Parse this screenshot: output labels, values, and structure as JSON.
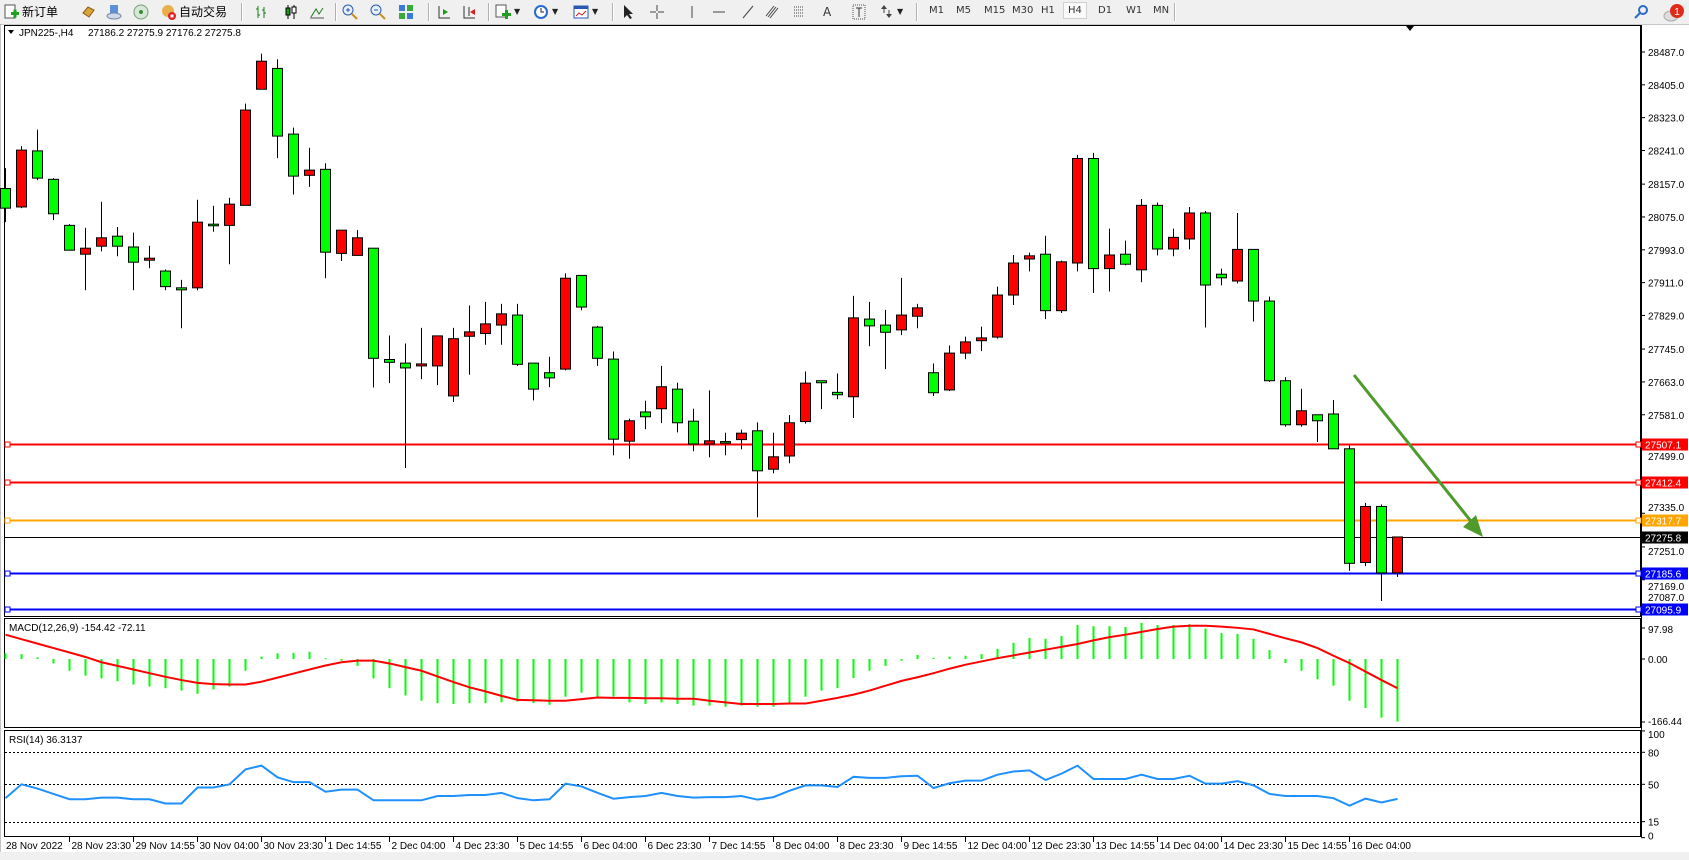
{
  "toolbar": {
    "new_order": "新订单",
    "auto_trade": "自动交易",
    "timeframes": [
      "M1",
      "M5",
      "M15",
      "M30",
      "H1",
      "H4",
      "D1",
      "W1",
      "MN"
    ],
    "active_timeframe": "H4",
    "notification_count": "1",
    "text_tool": "A"
  },
  "chart": {
    "symbol": "JPN225-,H4",
    "ohlc": "27186.2 27275.9 27176.2 27275.8",
    "bull_color": "#ff0000",
    "bear_color": "#00ff00",
    "price_ticks": [
      "28487.0",
      "28405.0",
      "28323.0",
      "28241.0",
      "28157.0",
      "28075.0",
      "27993.0",
      "27911.0",
      "27829.0",
      "27745.0",
      "27663.0",
      "27581.0",
      "27499.0",
      "27335.0",
      "27251.0",
      "27169.0",
      "27087.0"
    ],
    "bid": {
      "price": 27275.8,
      "label": "27275.8",
      "color": "#000000"
    },
    "hlines": [
      {
        "price": 27507.1,
        "label": "27507.1",
        "color": "#ff0000"
      },
      {
        "price": 27412.4,
        "label": "27412.4",
        "color": "#ff0000"
      },
      {
        "price": 27317.7,
        "label": "27317.7",
        "color": "#ffa500"
      },
      {
        "price": 27185.6,
        "label": "27185.6",
        "color": "#0000ff"
      },
      {
        "price": 27095.9,
        "label": "27095.9",
        "color": "#0000ff"
      }
    ],
    "arrow_color": "#4f9a2c",
    "candles": [
      [
        28146,
        28197,
        28062,
        28097
      ],
      [
        28100,
        28252,
        28097,
        28242
      ],
      [
        28240,
        28293,
        28167,
        28172
      ],
      [
        28169,
        28172,
        28067,
        28083
      ],
      [
        28054,
        28057,
        27992,
        27992
      ],
      [
        27982,
        28048,
        27892,
        27997
      ],
      [
        28002,
        28113,
        27989,
        28023
      ],
      [
        28027,
        28050,
        27977,
        28002
      ],
      [
        28000,
        28036,
        27892,
        27962
      ],
      [
        27967,
        28003,
        27947,
        27972
      ],
      [
        27940,
        27944,
        27892,
        27901
      ],
      [
        27898,
        27918,
        27797,
        27893
      ],
      [
        27898,
        28118,
        27892,
        28062
      ],
      [
        28057,
        28103,
        28038,
        28053
      ],
      [
        28054,
        28123,
        27957,
        28107
      ],
      [
        28104,
        28358,
        28104,
        28342
      ],
      [
        28394,
        28483,
        28394,
        28464
      ],
      [
        28446,
        28469,
        28222,
        28277
      ],
      [
        28282,
        28298,
        28131,
        28177
      ],
      [
        28179,
        28248,
        28150,
        28192
      ],
      [
        28194,
        28209,
        27922,
        27987
      ],
      [
        27984,
        28042,
        27965,
        28042
      ],
      [
        27979,
        28042,
        27979,
        28023
      ],
      [
        27997,
        27997,
        27649,
        27722
      ],
      [
        27719,
        27779,
        27660,
        27712
      ],
      [
        27710,
        27759,
        27448,
        27698
      ],
      [
        27703,
        27798,
        27670,
        27708
      ],
      [
        27703,
        27778,
        27655,
        27778
      ],
      [
        27628,
        27798,
        27613,
        27771
      ],
      [
        27777,
        27854,
        27681,
        27788
      ],
      [
        27784,
        27863,
        27756,
        27808
      ],
      [
        27805,
        27858,
        27756,
        27833
      ],
      [
        27830,
        27858,
        27703,
        27707
      ],
      [
        27710,
        27710,
        27617,
        27645
      ],
      [
        27686,
        27726,
        27650,
        27673
      ],
      [
        27695,
        27934,
        27692,
        27922
      ],
      [
        27929,
        27929,
        27842,
        27850
      ],
      [
        27800,
        27803,
        27703,
        27722
      ],
      [
        27720,
        27739,
        27480,
        27520
      ],
      [
        27515,
        27571,
        27471,
        27566
      ],
      [
        27588,
        27616,
        27545,
        27576
      ],
      [
        27596,
        27703,
        27560,
        27651
      ],
      [
        27645,
        27661,
        27537,
        27561
      ],
      [
        27565,
        27596,
        27490,
        27508
      ],
      [
        27508,
        27642,
        27475,
        27516
      ],
      [
        27514,
        27536,
        27480,
        27513
      ],
      [
        27519,
        27544,
        27495,
        27535
      ],
      [
        27541,
        27562,
        27325,
        27441
      ],
      [
        27445,
        27536,
        27435,
        27476
      ],
      [
        27478,
        27580,
        27460,
        27561
      ],
      [
        27564,
        27689,
        27559,
        27660
      ],
      [
        27666,
        27666,
        27595,
        27661
      ],
      [
        27637,
        27684,
        27620,
        27631
      ],
      [
        27626,
        27878,
        27573,
        27823
      ],
      [
        27820,
        27863,
        27752,
        27803
      ],
      [
        27805,
        27843,
        27695,
        27787
      ],
      [
        27793,
        27923,
        27780,
        27830
      ],
      [
        27827,
        27858,
        27797,
        27848
      ],
      [
        27686,
        27709,
        27628,
        27636
      ],
      [
        27643,
        27754,
        27640,
        27735
      ],
      [
        27735,
        27776,
        27720,
        27763
      ],
      [
        27766,
        27801,
        27740,
        27773
      ],
      [
        27775,
        27901,
        27771,
        27880
      ],
      [
        27880,
        27980,
        27855,
        27960
      ],
      [
        27970,
        27986,
        27939,
        27978
      ],
      [
        27982,
        28028,
        27820,
        27841
      ],
      [
        27841,
        27966,
        27835,
        27963
      ],
      [
        27960,
        28230,
        27939,
        28221
      ],
      [
        28221,
        28235,
        27885,
        27946
      ],
      [
        27946,
        28046,
        27889,
        27980
      ],
      [
        27982,
        28016,
        27954,
        27957
      ],
      [
        27943,
        28120,
        27912,
        28104
      ],
      [
        28104,
        28111,
        27979,
        27995
      ],
      [
        27995,
        28046,
        27977,
        28024
      ],
      [
        28020,
        28100,
        27994,
        28085
      ],
      [
        28085,
        28090,
        27799,
        27905
      ],
      [
        27932,
        27946,
        27904,
        27923
      ],
      [
        27915,
        28085,
        27909,
        27994
      ],
      [
        27994,
        27994,
        27814,
        27865
      ],
      [
        27865,
        27876,
        27663,
        27666
      ],
      [
        27666,
        27675,
        27551,
        27556
      ],
      [
        27556,
        27646,
        27551,
        27591
      ],
      [
        27581,
        27581,
        27513,
        27566
      ],
      [
        27583,
        27618,
        27496,
        27496
      ],
      [
        27496,
        27504,
        27191,
        27210
      ],
      [
        27212,
        27361,
        27203,
        27352
      ],
      [
        27352,
        27357,
        27116,
        27186
      ],
      [
        27186.2,
        27275.9,
        27176.2,
        27275.8
      ]
    ],
    "time_labels": [
      "28 Nov 2022",
      "28 Nov 23:30",
      "29 Nov 14:55",
      "30 Nov 04:00",
      "30 Nov 23:30",
      "1 Dec 14:55",
      "2 Dec 04:00",
      "4 Dec 23:30",
      "5 Dec 14:55",
      "6 Dec 04:00",
      "6 Dec 23:30",
      "7 Dec 14:55",
      "8 Dec 04:00",
      "8 Dec 23:30",
      "9 Dec 14:55",
      "12 Dec 04:00",
      "12 Dec 23:30",
      "13 Dec 14:55",
      "14 Dec 04:00",
      "14 Dec 23:30",
      "15 Dec 14:55",
      "16 Dec 04:00"
    ]
  },
  "macd": {
    "title": "MACD(12,26,9) -154.42 -72.11",
    "axis_labels": [
      "97.98",
      "0.00",
      "-166.44"
    ],
    "histogram_color": "#00ff00",
    "signal_color": "#ff0000",
    "histogram": [
      14,
      12,
      4,
      -11,
      -29,
      -41,
      -48,
      -55,
      -63,
      -68,
      -72,
      -78,
      -86,
      -75,
      -68,
      -29,
      6,
      14,
      15,
      18,
      2,
      -4,
      -17,
      -48,
      -72,
      -90,
      -103,
      -109,
      -111,
      -109,
      -109,
      -107,
      -105,
      -109,
      -113,
      -93,
      -83,
      -95,
      -93,
      -107,
      -111,
      -107,
      -111,
      -115,
      -115,
      -118,
      -115,
      -118,
      -118,
      -111,
      -93,
      -78,
      -72,
      -47,
      -29,
      -17,
      -4,
      10,
      3,
      6,
      8,
      12,
      25,
      40,
      52,
      50,
      57,
      84,
      81,
      81,
      79,
      89,
      84,
      84,
      86,
      75,
      64,
      62,
      50,
      22,
      -10,
      -29,
      -50,
      -66,
      -103,
      -121,
      -145,
      -154.42
    ],
    "signal": [
      60,
      49,
      38,
      27,
      16,
      5,
      -8,
      -17,
      -26,
      -35,
      -44,
      -52,
      -59,
      -62,
      -63,
      -63,
      -56,
      -46,
      -36,
      -26,
      -16,
      -8,
      -4,
      -4,
      -11,
      -20,
      -29,
      -43,
      -57,
      -70,
      -80,
      -91,
      -101,
      -102,
      -103,
      -103,
      -99,
      -95,
      -96,
      -96,
      -97,
      -97,
      -98,
      -98,
      -103,
      -107,
      -111,
      -111,
      -111,
      -110,
      -110,
      -103,
      -96,
      -88,
      -78,
      -66,
      -54,
      -45,
      -35,
      -24,
      -14,
      -6,
      2,
      9,
      16,
      23,
      30,
      37,
      46,
      54,
      60,
      67,
      74,
      80,
      82,
      82,
      80,
      77,
      73,
      62,
      51,
      41,
      27,
      8,
      -10,
      -31,
      -52,
      -72.11
    ]
  },
  "rsi": {
    "title": "RSI(14) 36.3137",
    "axis_labels": [
      "100",
      "80",
      "50",
      "15",
      "0"
    ],
    "line_color": "#1e90ff",
    "values": [
      37,
      50,
      46,
      41,
      36,
      36,
      37.5,
      37.5,
      36,
      36,
      32,
      32,
      47,
      47,
      50,
      64,
      67.5,
      56.5,
      52,
      52,
      43,
      45,
      45,
      35,
      35,
      35,
      35,
      39,
      39,
      40,
      40,
      42,
      37,
      35,
      36,
      50.6,
      48,
      42,
      36.5,
      38,
      39,
      42,
      39,
      37.5,
      38,
      38,
      39,
      35.6,
      38,
      44,
      49,
      49,
      47.5,
      57,
      56,
      56,
      57.5,
      58,
      46.5,
      51,
      53.4,
      53.4,
      59,
      62,
      63,
      54,
      60,
      67.5,
      55,
      55,
      55,
      59,
      55,
      55,
      58,
      50.6,
      50.6,
      53,
      49,
      41,
      39,
      39,
      39,
      37,
      30,
      36.6,
      33,
      36.3137
    ]
  }
}
